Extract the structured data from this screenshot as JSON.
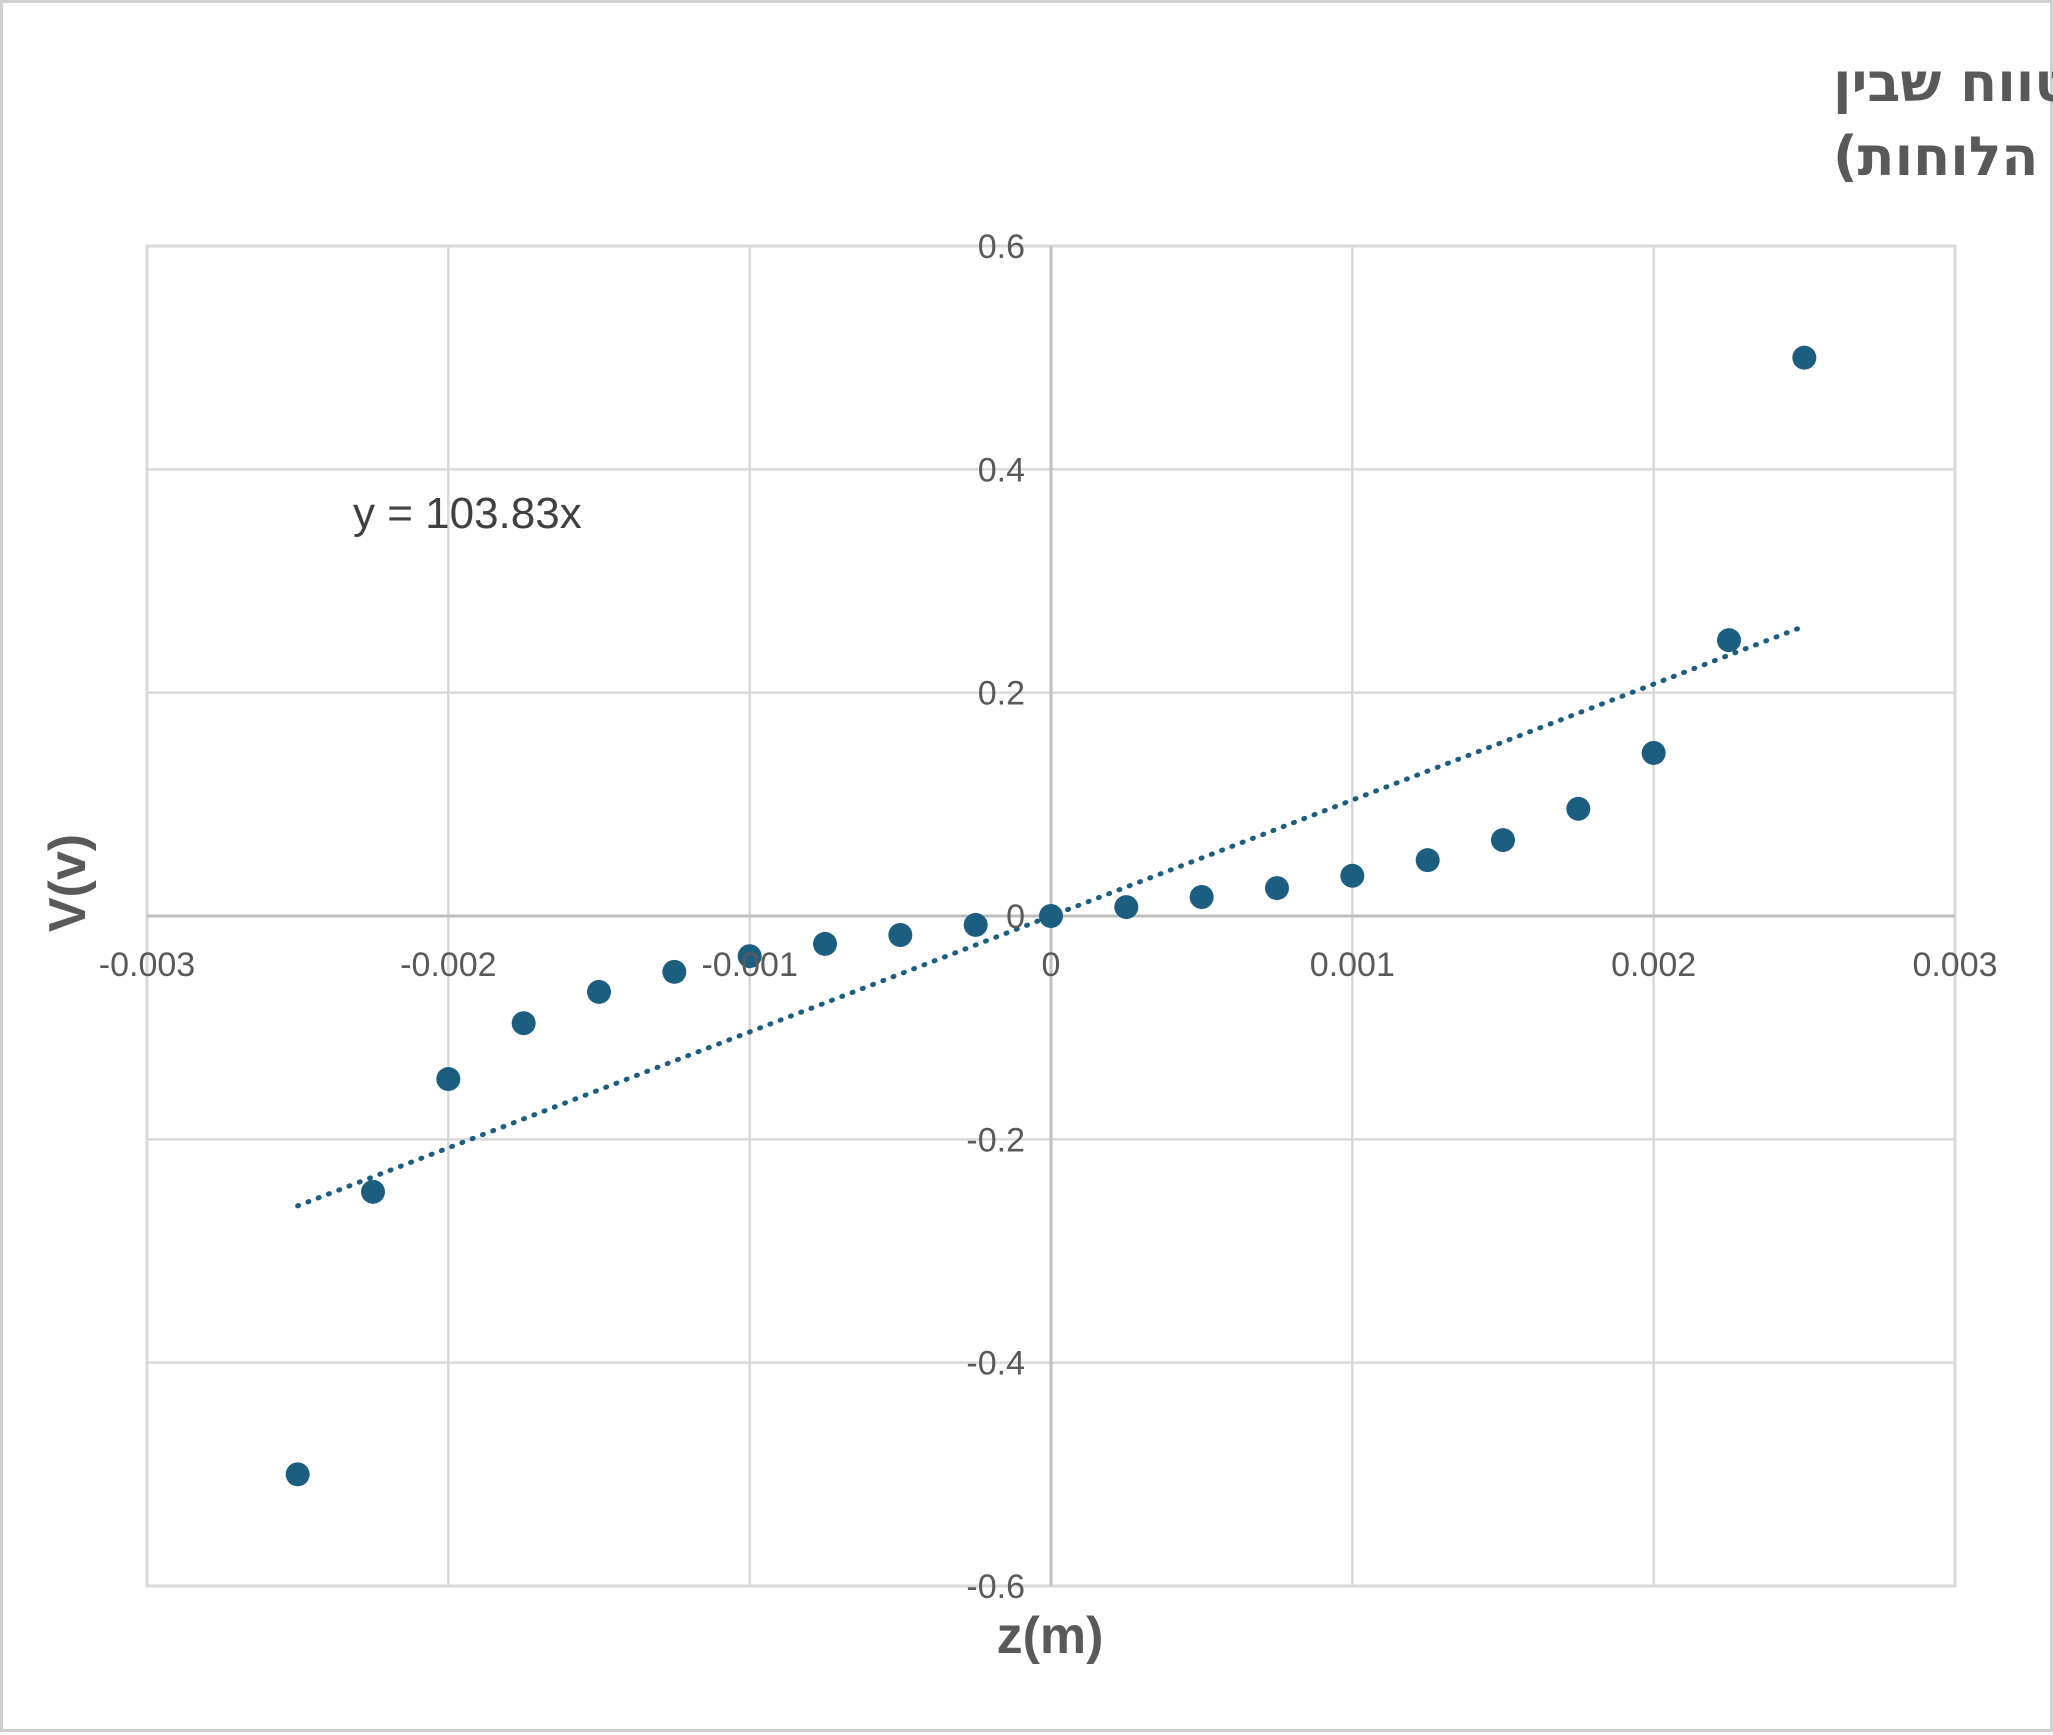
{
  "chart_data": {
    "type": "scatter",
    "title_lines": [
      "הפוטנציאל כפונקציה של המרחק האנכי מהלוחות (בטווח שבין",
      "הלוחות)"
    ],
    "xlabel": "z(m)",
    "ylabel": "V(v)",
    "xlim": [
      -0.003,
      0.003
    ],
    "ylim": [
      -0.6,
      0.6
    ],
    "x_ticks": [
      -0.003,
      -0.002,
      -0.001,
      0,
      0.001,
      0.002,
      0.003
    ],
    "x_tick_labels": [
      "-0.003",
      "-0.002",
      "-0.001",
      "0",
      "0.001",
      "0.002",
      "0.003"
    ],
    "y_ticks": [
      -0.6,
      -0.4,
      -0.2,
      0,
      0.2,
      0.4,
      0.6
    ],
    "y_tick_labels": [
      "-0.6",
      "-0.4",
      "-0.2",
      "0",
      "0.2",
      "0.4",
      "0.6"
    ],
    "grid": true,
    "marker_color": "#1b5e80",
    "trendline_color": "#1b5e80",
    "points": [
      {
        "x": -0.0025,
        "y": -0.5
      },
      {
        "x": -0.00225,
        "y": -0.247
      },
      {
        "x": -0.002,
        "y": -0.146
      },
      {
        "x": -0.00175,
        "y": -0.096
      },
      {
        "x": -0.0015,
        "y": -0.068
      },
      {
        "x": -0.00125,
        "y": -0.05
      },
      {
        "x": -0.001,
        "y": -0.036
      },
      {
        "x": -0.00075,
        "y": -0.025
      },
      {
        "x": -0.0005,
        "y": -0.017
      },
      {
        "x": -0.00025,
        "y": -0.008
      },
      {
        "x": 0,
        "y": 0.0
      },
      {
        "x": 0.00025,
        "y": 0.008
      },
      {
        "x": 0.0005,
        "y": 0.017
      },
      {
        "x": 0.00075,
        "y": 0.025
      },
      {
        "x": 0.001,
        "y": 0.036
      },
      {
        "x": 0.00125,
        "y": 0.05
      },
      {
        "x": 0.0015,
        "y": 0.068
      },
      {
        "x": 0.00175,
        "y": 0.096
      },
      {
        "x": 0.002,
        "y": 0.146
      },
      {
        "x": 0.00225,
        "y": 0.247
      },
      {
        "x": 0.0025,
        "y": 0.5
      }
    ],
    "trendline": {
      "type": "linear",
      "slope": 103.83,
      "x_range": [
        -0.0025,
        0.0025
      ],
      "style": "dotted",
      "equation": "y = 103.83x"
    }
  }
}
